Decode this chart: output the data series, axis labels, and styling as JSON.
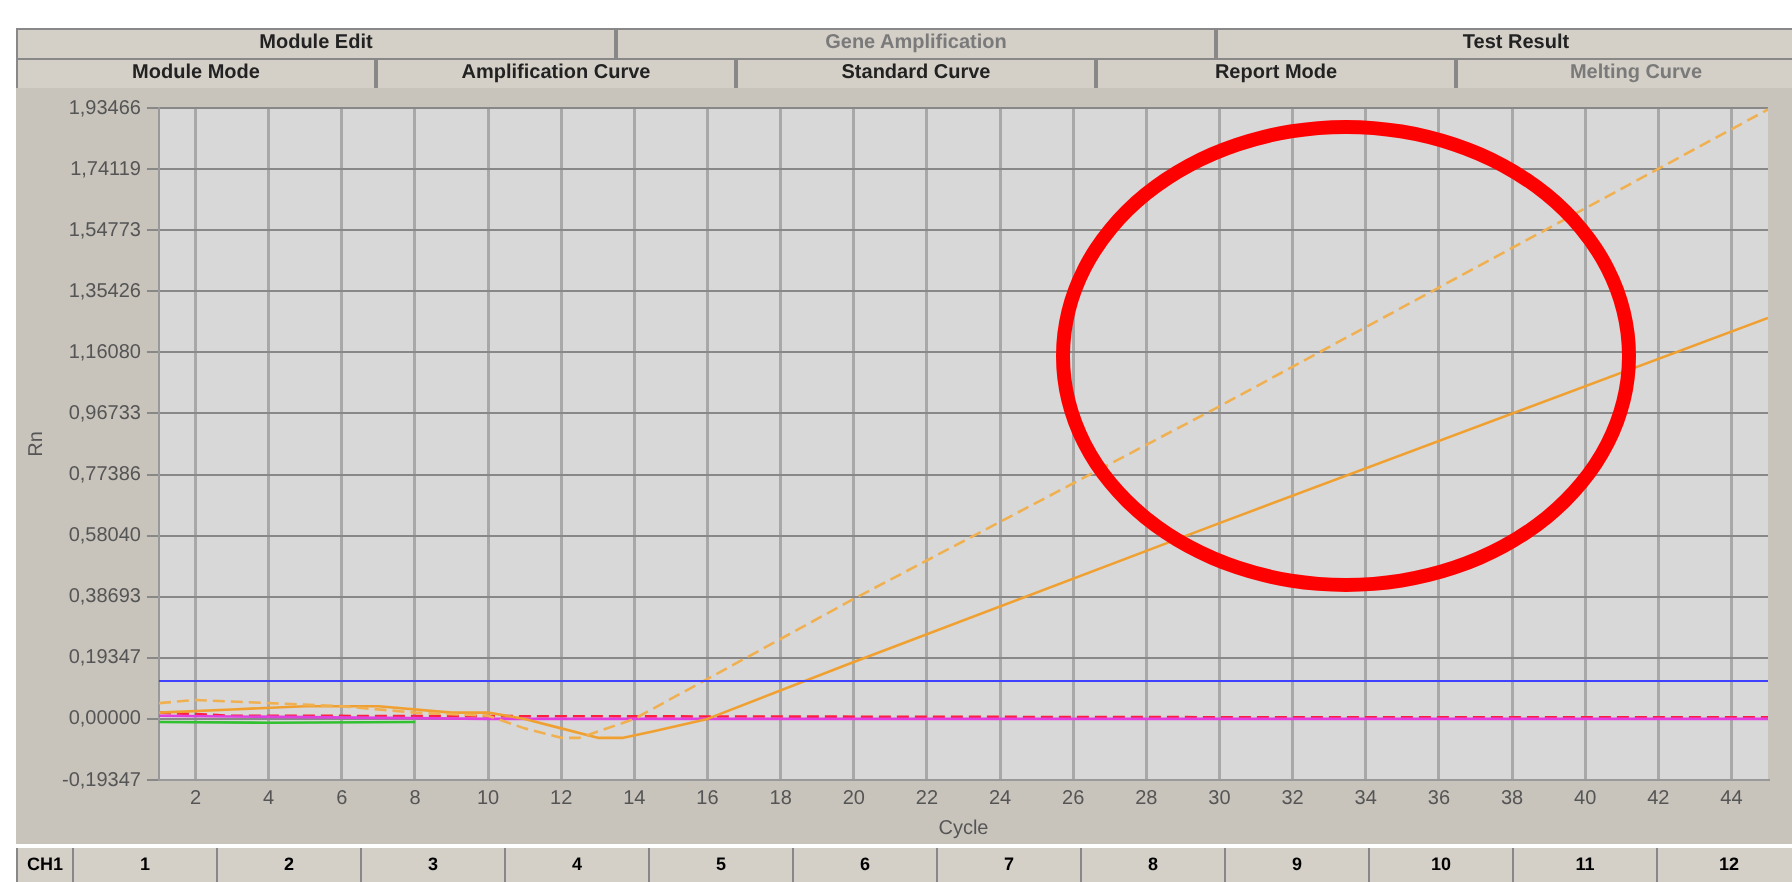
{
  "chart_data": {
    "type": "line",
    "xlabel": "Cycle",
    "ylabel": "Rn",
    "xlim": [
      1,
      45
    ],
    "xticks": [
      2,
      4,
      6,
      8,
      10,
      12,
      14,
      16,
      18,
      20,
      22,
      24,
      26,
      28,
      30,
      32,
      34,
      36,
      38,
      40,
      42,
      44
    ],
    "ylim": [
      -0.19347,
      1.93466
    ],
    "yticks": [
      {
        "value": -0.19347,
        "label": "-0,19347"
      },
      {
        "value": 0,
        "label": "0,00000"
      },
      {
        "value": 0.19347,
        "label": "0,19347"
      },
      {
        "value": 0.38693,
        "label": "0,38693"
      },
      {
        "value": 0.5804,
        "label": "0,58040"
      },
      {
        "value": 0.77386,
        "label": "0,77386"
      },
      {
        "value": 0.96733,
        "label": "0,96733"
      },
      {
        "value": 1.1608,
        "label": "1,16080"
      },
      {
        "value": 1.35426,
        "label": "1,35426"
      },
      {
        "value": 1.54773,
        "label": "1,54773"
      },
      {
        "value": 1.74119,
        "label": "1,74119"
      },
      {
        "value": 1.93466,
        "label": "1,93466"
      }
    ],
    "grid": true,
    "legend": false,
    "marker": "none",
    "series": [
      {
        "color": "#f0b050",
        "line_style": "dashed",
        "x": [
          1,
          2,
          4,
          6,
          8,
          10,
          11,
          12,
          12.5,
          13,
          14,
          20,
          30,
          45
        ],
        "values": [
          0.05,
          0.06,
          0.05,
          0.04,
          0.02,
          0.01,
          -0.03,
          -0.06,
          -0.06,
          -0.04,
          0,
          0.38,
          0.99,
          1.93
        ]
      },
      {
        "color": "#f0a030",
        "line_style": "solid",
        "x": [
          1,
          3,
          5,
          7,
          9,
          10,
          11,
          12,
          13,
          13.7,
          14.5,
          16,
          20,
          30,
          45
        ],
        "values": [
          0.02,
          0.03,
          0.04,
          0.04,
          0.02,
          0.02,
          0,
          -0.03,
          -0.06,
          -0.06,
          -0.04,
          0,
          0.18,
          0.62,
          1.27
        ]
      },
      {
        "color": "#e040e0",
        "line_style": "solid",
        "x": [
          1,
          10,
          45
        ],
        "values": [
          0.01,
          0,
          0
        ]
      },
      {
        "color": "#30c030",
        "line_style": "solid",
        "x": [
          1,
          4,
          8
        ],
        "values": [
          -0.01,
          -0.012,
          -0.01
        ]
      },
      {
        "color": "#ff2040",
        "line_style": "dashed",
        "x": [
          1,
          3,
          32,
          45
        ],
        "values": [
          0.02,
          0.01,
          0.005,
          0.005
        ]
      }
    ],
    "ref_lines": [
      {
        "axis": "y",
        "value": 0.12,
        "color": "#4040ff"
      }
    ],
    "annotations": [
      "Module Edit",
      "Gene Amplification",
      "Test Result",
      "Module Mode",
      "Amplification Curve",
      "Standard Curve",
      "Report Mode",
      "Melting Curve",
      "CH1",
      "1",
      "2",
      "3",
      "4",
      "5",
      "6",
      "7",
      "8",
      "9",
      "10",
      "11",
      "12"
    ]
  }
}
